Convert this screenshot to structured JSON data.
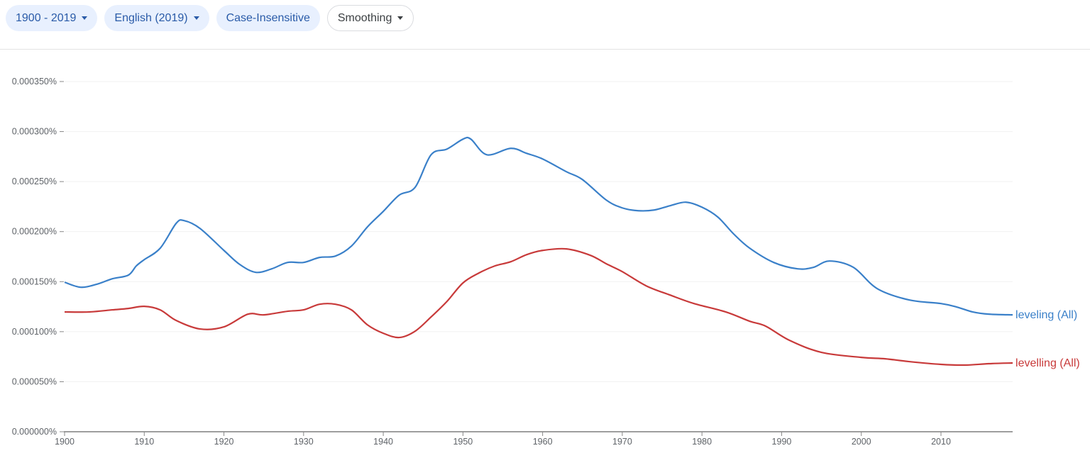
{
  "toolbar": {
    "year_range": "1900 - 2019",
    "corpus": "English (2019)",
    "case": "Case-Insensitive",
    "smoothing": "Smoothing"
  },
  "colors": {
    "chip_bg": "#e8f0fe",
    "chip_text": "#2a5ba8",
    "leveling": "#3a80c9",
    "levelling": "#c83a3a"
  },
  "chart_data": {
    "type": "line",
    "xlim": [
      1900,
      2019
    ],
    "ylim": [
      0,
      0.00035
    ],
    "grid": true,
    "legend": "inline-right",
    "x_ticks": [
      "1900",
      "1910",
      "1920",
      "1930",
      "1940",
      "1950",
      "1960",
      "1970",
      "1980",
      "1990",
      "2000",
      "2010"
    ],
    "y_ticks": [
      "0.000000%",
      "0.000050%",
      "0.000100%",
      "0.000150%",
      "0.000200%",
      "0.000250%",
      "0.000300%",
      "0.000350%"
    ],
    "series": [
      {
        "name": "leveling (All)",
        "color": "#3a80c9",
        "x": [
          1900,
          1902,
          1904,
          1906,
          1908,
          1909,
          1910,
          1912,
          1914,
          1915,
          1917,
          1920,
          1922,
          1924,
          1926,
          1928,
          1930,
          1932,
          1934,
          1936,
          1938,
          1940,
          1942,
          1944,
          1946,
          1948,
          1950,
          1951,
          1953,
          1956,
          1958,
          1960,
          1963,
          1965,
          1968,
          1970,
          1972,
          1974,
          1976,
          1978,
          1980,
          1982,
          1984,
          1986,
          1989,
          1992,
          1994,
          1996,
          1999,
          2002,
          2006,
          2010,
          2012,
          2014,
          2016,
          2019
        ],
        "y": [
          0.0001494,
          0.0001444,
          0.0001473,
          0.0001529,
          0.0001565,
          0.0001657,
          0.000172,
          0.0001834,
          0.0002082,
          0.000211,
          0.0002032,
          0.0001812,
          0.0001671,
          0.0001593,
          0.0001628,
          0.0001692,
          0.0001692,
          0.0001742,
          0.0001756,
          0.0001855,
          0.0002046,
          0.0002202,
          0.0002365,
          0.0002443,
          0.0002768,
          0.0002825,
          0.0002924,
          0.0002924,
          0.0002768,
          0.0002832,
          0.0002782,
          0.0002726,
          0.0002598,
          0.000252,
          0.0002315,
          0.0002237,
          0.0002209,
          0.0002216,
          0.0002259,
          0.0002294,
          0.0002244,
          0.0002145,
          0.0001975,
          0.0001834,
          0.0001692,
          0.0001628,
          0.0001643,
          0.0001706,
          0.0001643,
          0.000143,
          0.0001317,
          0.0001281,
          0.0001246,
          0.0001197,
          0.0001175,
          0.0001168
        ]
      },
      {
        "name": "levelling (All)",
        "color": "#c83a3a",
        "x": [
          1900,
          1903,
          1906,
          1908,
          1910,
          1912,
          1914,
          1917,
          1920,
          1923,
          1925,
          1928,
          1930,
          1932,
          1934,
          1936,
          1938,
          1940,
          1942,
          1944,
          1946,
          1948,
          1950,
          1952,
          1954,
          1956,
          1958,
          1960,
          1963,
          1966,
          1968,
          1970,
          1973,
          1976,
          1979,
          1983,
          1986,
          1988,
          1991,
          1995,
          2000,
          2003,
          2006,
          2010,
          2013,
          2016,
          2019
        ],
        "y": [
          0.0001197,
          0.0001197,
          0.0001218,
          0.0001232,
          0.0001253,
          0.0001218,
          0.0001112,
          0.0001027,
          0.0001048,
          0.0001175,
          0.0001168,
          0.0001204,
          0.0001218,
          0.0001274,
          0.0001274,
          0.0001218,
          0.0001069,
          9.84e-05,
          9.42e-05,
          0.0001005,
          0.0001147,
          0.0001303,
          0.0001487,
          0.0001586,
          0.0001657,
          0.0001699,
          0.000177,
          0.0001812,
          0.0001827,
          0.0001763,
          0.0001678,
          0.00016,
          0.0001458,
          0.0001366,
          0.0001281,
          0.0001197,
          0.0001104,
          0.0001055,
          9.13e-05,
          7.93e-05,
          7.43e-05,
          7.29e-05,
          7.01e-05,
          6.73e-05,
          6.66e-05,
          6.8e-05,
          6.87e-05
        ]
      }
    ]
  }
}
